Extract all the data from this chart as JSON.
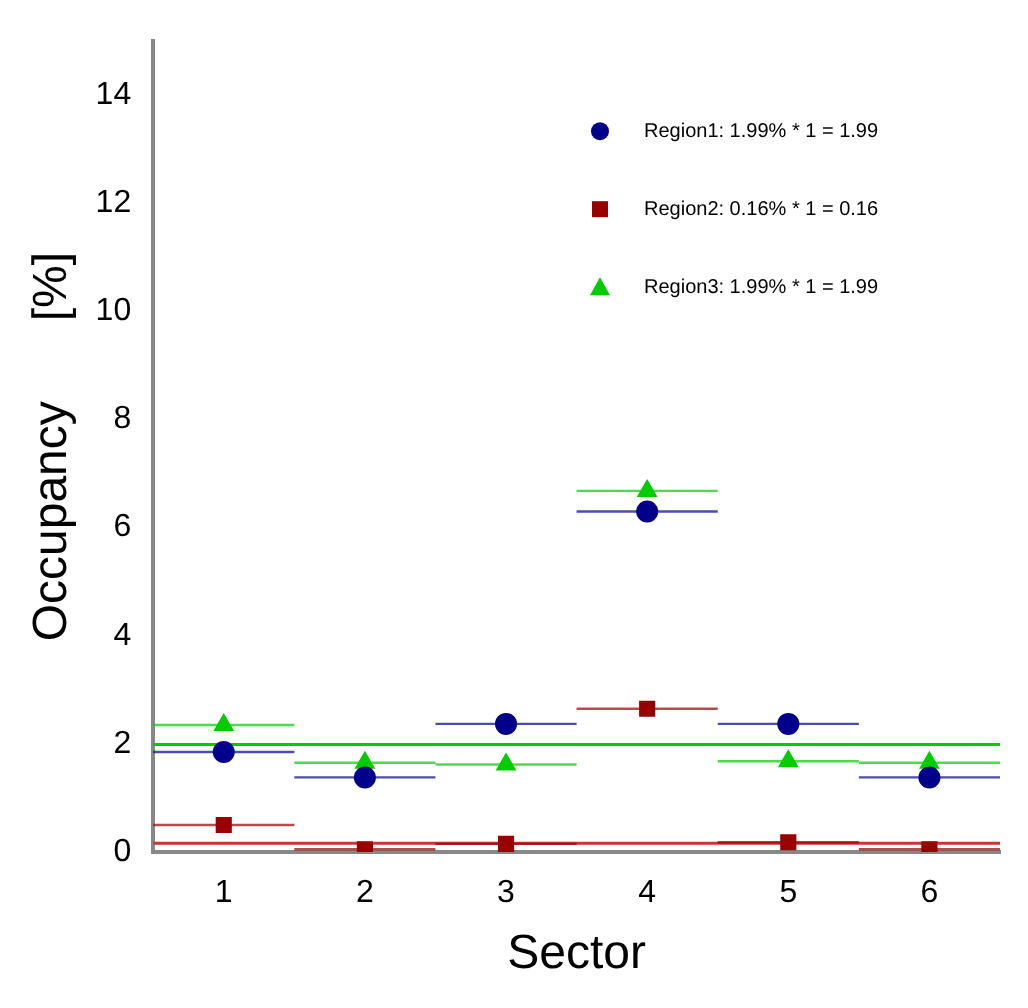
{
  "chart_data": {
    "type": "scatter",
    "xlabel": "Sector",
    "ylabel": "Occupancy      [%]",
    "x": [
      1,
      2,
      3,
      4,
      5,
      6
    ],
    "xlim": [
      0.5,
      6.5
    ],
    "xticks": [
      1,
      2,
      3,
      4,
      5,
      6
    ],
    "ylim": [
      0,
      15
    ],
    "yticks": [
      0,
      2,
      4,
      6,
      8,
      10,
      12,
      14
    ],
    "series": [
      {
        "name": "Region1: 1.99% * 1 = 1.99",
        "color": "#00008b",
        "marker": "circle",
        "values": [
          1.85,
          1.38,
          2.37,
          6.3,
          2.37,
          1.38
        ],
        "xerrors": [
          0.5,
          0.5,
          0.5,
          0.5,
          0.5,
          0.5
        ]
      },
      {
        "name": "Region2: 0.16% * 1 = 0.16",
        "color": "#990000",
        "marker": "square",
        "values": [
          0.5,
          0.05,
          0.15,
          2.65,
          0.18,
          0.05
        ],
        "xerrors": [
          0.5,
          0.5,
          0.5,
          0.5,
          0.5,
          0.5
        ]
      },
      {
        "name": "Region3: 1.99% * 1 = 1.99",
        "color": "#00cc00",
        "marker": "triangle",
        "values": [
          2.35,
          1.65,
          1.62,
          6.68,
          1.68,
          1.65
        ],
        "xerrors": [
          0.5,
          0.5,
          0.5,
          0.5,
          0.5,
          0.5
        ]
      }
    ],
    "ref_lines": [
      {
        "axis": "y",
        "value": 1.99,
        "color": "#00cc00"
      },
      {
        "axis": "y",
        "value": 0.16,
        "color": "#cc3333"
      }
    ],
    "grid": false,
    "legend": "top right"
  }
}
